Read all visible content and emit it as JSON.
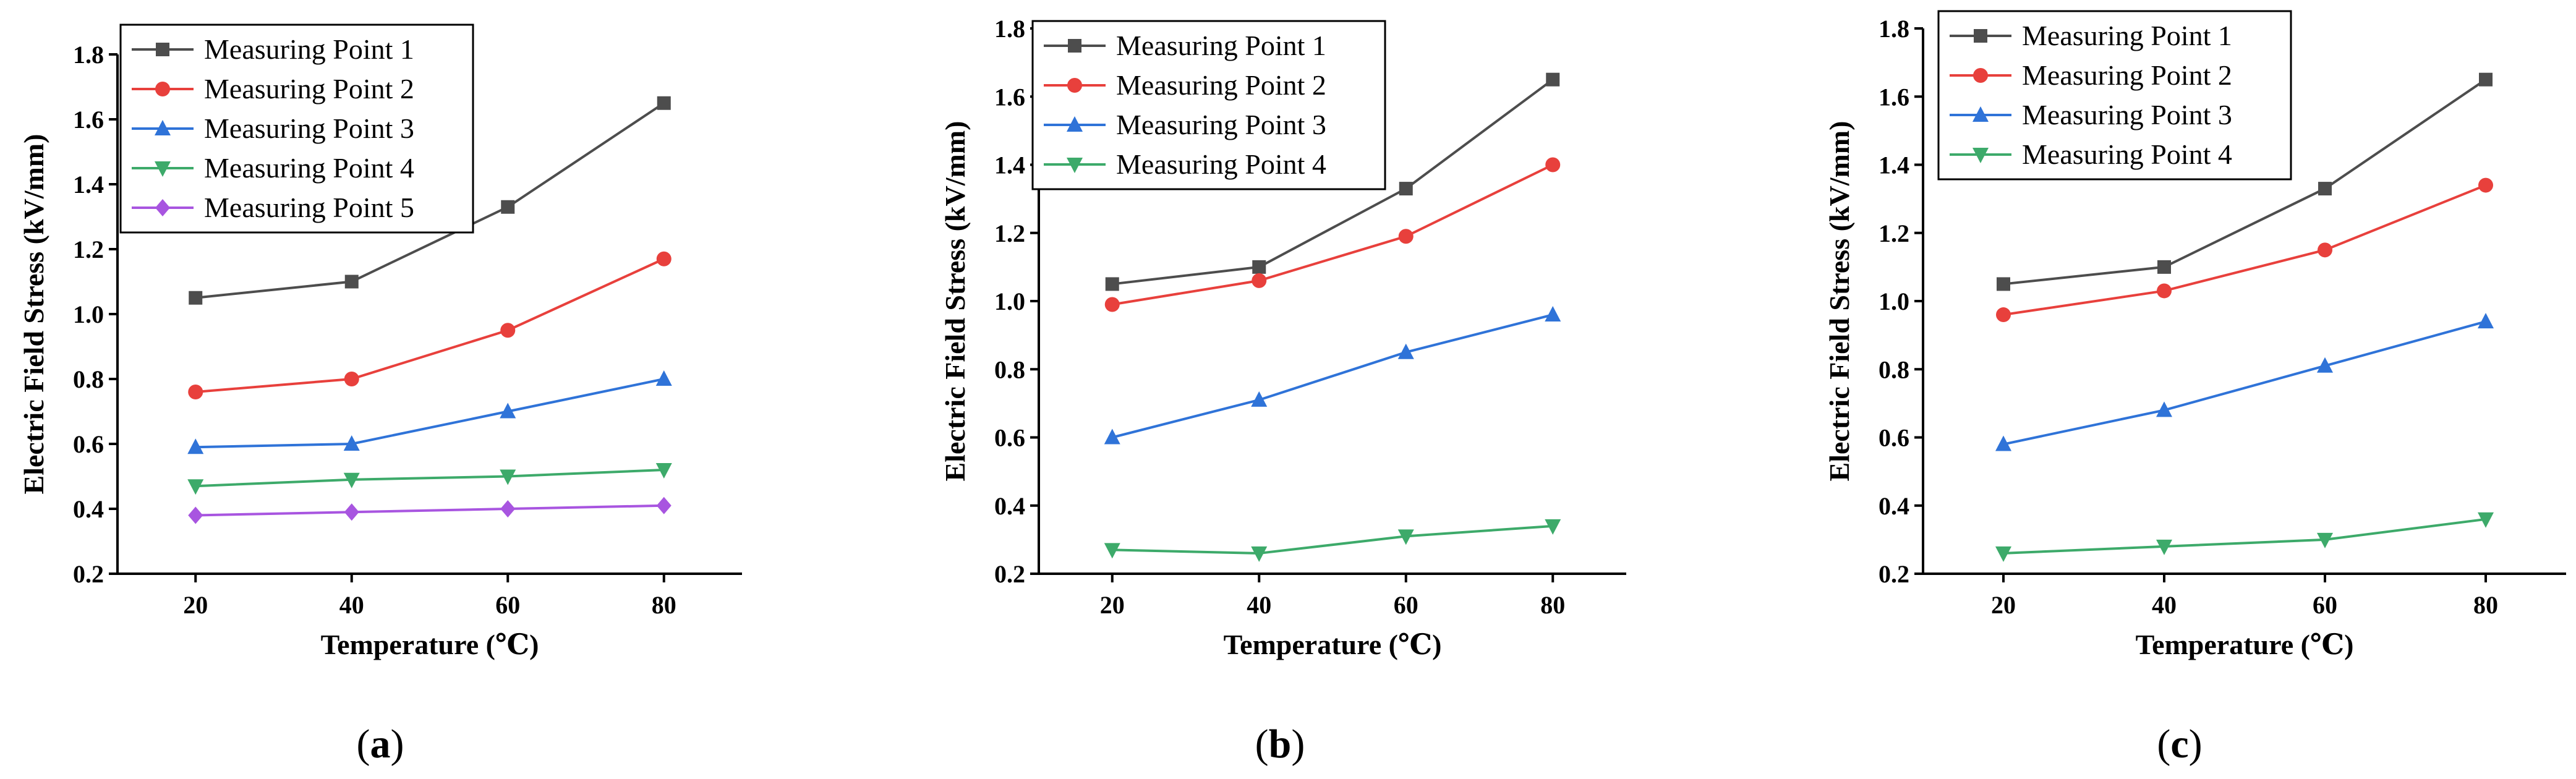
{
  "chart_data": [
    {
      "type": "line",
      "caption": "a",
      "xlabel": "Temperature (℃)",
      "ylabel": "Electric Field Stress (kV/mm)",
      "x": [
        20,
        40,
        60,
        80
      ],
      "x_ticks": [
        "20",
        "40",
        "60",
        "80"
      ],
      "y_ticks": [
        "0.2",
        "0.4",
        "0.6",
        "0.8",
        "1.0",
        "1.2",
        "1.4",
        "1.6",
        "1.8"
      ],
      "ylim": [
        0.2,
        1.8
      ],
      "legend_position": "top-left",
      "grid": false,
      "series": [
        {
          "name": "Measuring Point 1",
          "values": [
            1.05,
            1.1,
            1.33,
            1.65
          ],
          "color": "#4d4d4d",
          "marker": "square"
        },
        {
          "name": "Measuring Point 2",
          "values": [
            0.76,
            0.8,
            0.95,
            1.17
          ],
          "color": "#e8403c",
          "marker": "circle"
        },
        {
          "name": "Measuring Point 3",
          "values": [
            0.59,
            0.6,
            0.7,
            0.8
          ],
          "color": "#2f73d8",
          "marker": "triangle-up"
        },
        {
          "name": "Measuring Point 4",
          "values": [
            0.47,
            0.49,
            0.5,
            0.52
          ],
          "color": "#3daa6a",
          "marker": "triangle-down"
        },
        {
          "name": "Measuring Point 5",
          "values": [
            0.38,
            0.39,
            0.4,
            0.41
          ],
          "color": "#a855e0",
          "marker": "diamond"
        }
      ]
    },
    {
      "type": "line",
      "caption": "b",
      "xlabel": "Temperature (℃)",
      "ylabel": "Electric Field Stress (kV/mm)",
      "x": [
        20,
        40,
        60,
        80
      ],
      "x_ticks": [
        "20",
        "40",
        "60",
        "80"
      ],
      "y_ticks": [
        "0.2",
        "0.4",
        "0.6",
        "0.8",
        "1.0",
        "1.2",
        "1.4",
        "1.6",
        "1.8"
      ],
      "ylim": [
        0.2,
        1.8
      ],
      "legend_position": "top-left",
      "grid": false,
      "series": [
        {
          "name": "Measuring Point 1",
          "values": [
            1.05,
            1.1,
            1.33,
            1.65
          ],
          "color": "#4d4d4d",
          "marker": "square"
        },
        {
          "name": "Measuring Point 2",
          "values": [
            0.99,
            1.06,
            1.19,
            1.4
          ],
          "color": "#e8403c",
          "marker": "circle"
        },
        {
          "name": "Measuring Point 3",
          "values": [
            0.6,
            0.71,
            0.85,
            0.96
          ],
          "color": "#2f73d8",
          "marker": "triangle-up"
        },
        {
          "name": "Measuring Point 4",
          "values": [
            0.27,
            0.26,
            0.31,
            0.34
          ],
          "color": "#3daa6a",
          "marker": "triangle-down"
        }
      ]
    },
    {
      "type": "line",
      "caption": "c",
      "xlabel": "Temperature (℃)",
      "ylabel": "Electric Field Stress (kV/mm)",
      "x": [
        20,
        40,
        60,
        80
      ],
      "x_ticks": [
        "20",
        "40",
        "60",
        "80"
      ],
      "y_ticks": [
        "0.2",
        "0.4",
        "0.6",
        "0.8",
        "1.0",
        "1.2",
        "1.4",
        "1.6",
        "1.8"
      ],
      "ylim": [
        0.2,
        1.8
      ],
      "legend_position": "top-left",
      "grid": false,
      "series": [
        {
          "name": "Measuring Point 1",
          "values": [
            1.05,
            1.1,
            1.33,
            1.65
          ],
          "color": "#4d4d4d",
          "marker": "square"
        },
        {
          "name": "Measuring Point 2",
          "values": [
            0.96,
            1.03,
            1.15,
            1.34
          ],
          "color": "#e8403c",
          "marker": "circle"
        },
        {
          "name": "Measuring Point 3",
          "values": [
            0.58,
            0.68,
            0.81,
            0.94
          ],
          "color": "#2f73d8",
          "marker": "triangle-up"
        },
        {
          "name": "Measuring Point 4",
          "values": [
            0.26,
            0.28,
            0.3,
            0.36
          ],
          "color": "#3daa6a",
          "marker": "triangle-down"
        }
      ]
    }
  ]
}
